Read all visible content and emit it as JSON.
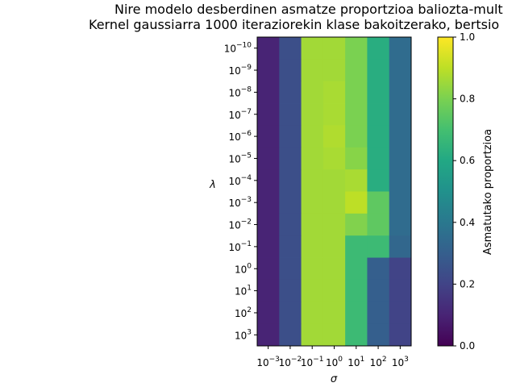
{
  "chart_data": {
    "type": "heatmap",
    "title": [
      "Nire modelo desberdinen asmatze proportzioa baliozta-mult",
      "Kernel gaussiarra 1000 iteraziorekin klase bakoitzerako, bertsio"
    ],
    "xlabel": "σ",
    "ylabel": "λ",
    "x_exponents": [
      -3,
      -2,
      -1,
      0,
      1,
      2,
      3
    ],
    "y_exponents": [
      -10,
      -9,
      -8,
      -7,
      -6,
      -5,
      -4,
      -3,
      -2,
      -1,
      0,
      1,
      2,
      3
    ],
    "tick_base": "10",
    "colormap": "viridis",
    "colorbar": {
      "label": "Asmatutako proportzioa",
      "range": [
        0.0,
        1.0
      ],
      "ticks": [
        "0.0",
        "0.2",
        "0.4",
        "0.6",
        "0.8",
        "1.0"
      ]
    },
    "values": [
      [
        0.1,
        0.24,
        0.86,
        0.86,
        0.8,
        0.62,
        0.35
      ],
      [
        0.1,
        0.24,
        0.86,
        0.86,
        0.8,
        0.62,
        0.35
      ],
      [
        0.1,
        0.24,
        0.86,
        0.87,
        0.8,
        0.62,
        0.35
      ],
      [
        0.1,
        0.24,
        0.86,
        0.87,
        0.8,
        0.62,
        0.35
      ],
      [
        0.1,
        0.24,
        0.86,
        0.88,
        0.8,
        0.62,
        0.35
      ],
      [
        0.1,
        0.24,
        0.86,
        0.87,
        0.82,
        0.62,
        0.35
      ],
      [
        0.1,
        0.24,
        0.86,
        0.86,
        0.87,
        0.62,
        0.35
      ],
      [
        0.1,
        0.24,
        0.86,
        0.86,
        0.9,
        0.75,
        0.35
      ],
      [
        0.1,
        0.24,
        0.86,
        0.86,
        0.81,
        0.75,
        0.35
      ],
      [
        0.1,
        0.24,
        0.86,
        0.86,
        0.68,
        0.68,
        0.33
      ],
      [
        0.1,
        0.24,
        0.86,
        0.86,
        0.68,
        0.3,
        0.2
      ],
      [
        0.1,
        0.24,
        0.86,
        0.86,
        0.68,
        0.3,
        0.2
      ],
      [
        0.1,
        0.24,
        0.86,
        0.86,
        0.68,
        0.3,
        0.2
      ],
      [
        0.1,
        0.24,
        0.86,
        0.86,
        0.68,
        0.3,
        0.2
      ]
    ]
  }
}
